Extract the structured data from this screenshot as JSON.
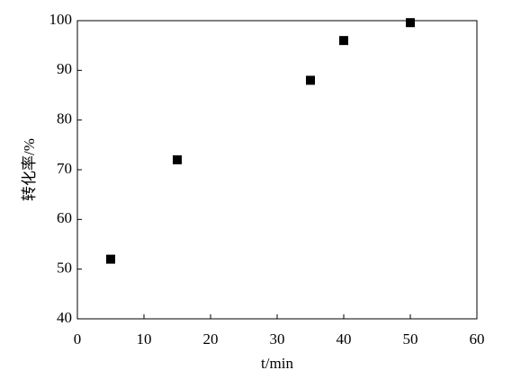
{
  "chart_data": {
    "type": "scatter",
    "x_label": "t/min",
    "y_label": "转化率/%",
    "x": [
      5,
      15,
      35,
      40,
      50
    ],
    "values": [
      52,
      72,
      88,
      96,
      99.6
    ],
    "color": "#000000",
    "xlim": [
      0,
      60
    ],
    "xticks": [
      0,
      10,
      20,
      30,
      40,
      50,
      60
    ],
    "ylim": [
      40,
      100
    ],
    "yticks": [
      40,
      50,
      60,
      70,
      80,
      90,
      100
    ]
  }
}
